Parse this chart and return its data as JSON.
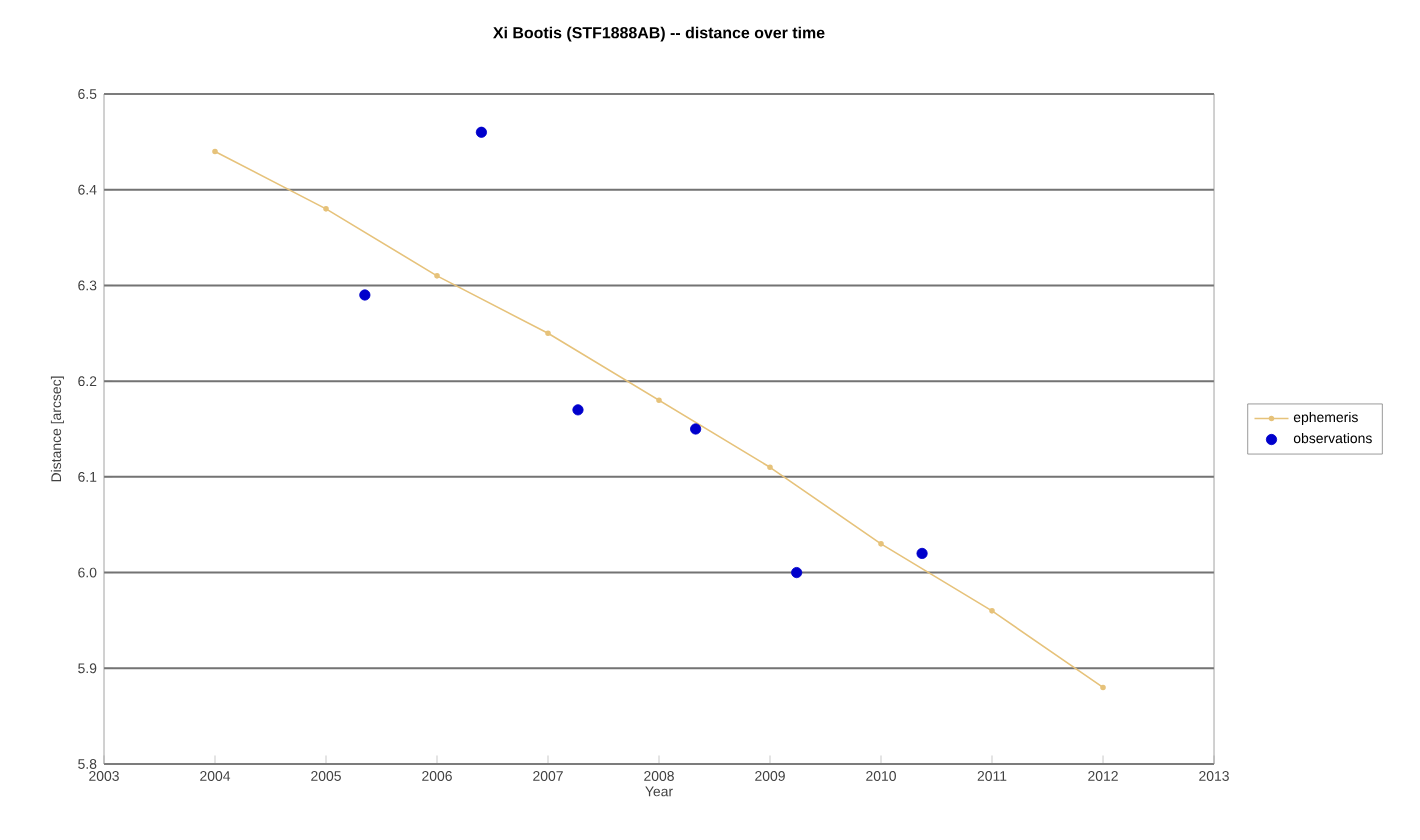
{
  "chart_data": {
    "type": "line",
    "title": "Xi Bootis (STF1888AB) -- distance over time",
    "xlabel": "Year",
    "ylabel": "Distance [arcsec]",
    "xlim": [
      2003,
      2013
    ],
    "xticks": [
      2003,
      2004,
      2005,
      2006,
      2007,
      2008,
      2009,
      2010,
      2011,
      2012,
      2013
    ],
    "ylim": [
      5.8,
      6.5
    ],
    "yticks": [
      {
        "value": 5.8,
        "label": "5.8"
      },
      {
        "value": 5.9,
        "label": "5.9"
      },
      {
        "value": 6.0,
        "label": "6.0"
      },
      {
        "value": 6.1,
        "label": "6.1"
      },
      {
        "value": 6.2,
        "label": "6.2"
      },
      {
        "value": 6.3,
        "label": "6.3"
      },
      {
        "value": 6.4,
        "label": "6.4"
      },
      {
        "value": 6.5,
        "label": "6.5"
      }
    ],
    "grid": "y",
    "legend": "right",
    "series": [
      {
        "name": "ephemeris",
        "color": "#e6c27a",
        "marker": "circle",
        "x": [
          2004,
          2005,
          2006,
          2007,
          2008,
          2009,
          2010,
          2011,
          2012
        ],
        "values": [
          6.44,
          6.38,
          6.31,
          6.25,
          6.18,
          6.11,
          6.03,
          5.96,
          5.88
        ]
      },
      {
        "name": "observations",
        "type": "scatter",
        "color": "#0000cc",
        "marker": "circle",
        "x": [
          2005.35,
          2006.4,
          2007.27,
          2008.33,
          2009.24,
          2010.37
        ],
        "values": [
          6.29,
          6.46,
          6.17,
          6.15,
          6.0,
          6.02
        ]
      }
    ]
  }
}
